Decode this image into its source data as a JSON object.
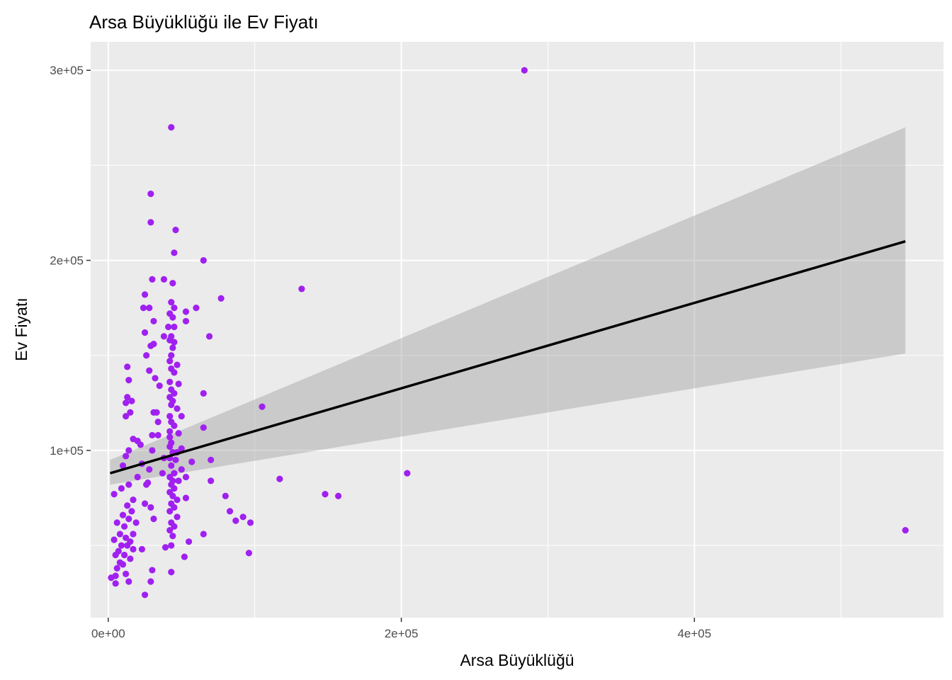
{
  "chart_data": {
    "type": "scatter",
    "title": "Arsa Büyüklüğü ile Ev Fiyatı",
    "xlabel": "Arsa Büyüklüğü",
    "ylabel": "Ev Fiyatı",
    "xlim": [
      -12000,
      570000
    ],
    "ylim": [
      12000,
      315000
    ],
    "x_ticks": [
      0,
      200000,
      400000
    ],
    "x_tick_labels": [
      "0e+00",
      "2e+05",
      "4e+05"
    ],
    "y_ticks": [
      100000,
      200000,
      300000
    ],
    "y_tick_labels": [
      "1e+05",
      "2e+05",
      "3e+05"
    ],
    "point_color": "#A020F0",
    "panel_color": "#EBEBEB",
    "grid_color": "#FFFFFF",
    "line_color": "#000000",
    "band_color": "#999999",
    "trend": {
      "x": [
        1300,
        544000
      ],
      "y": [
        88000,
        210000
      ],
      "band_lower": [
        82000,
        151000
      ],
      "band_upper": [
        95000,
        270000
      ]
    },
    "points": [
      [
        284000,
        300000
      ],
      [
        43000,
        270000
      ],
      [
        29000,
        235000
      ],
      [
        29000,
        220000
      ],
      [
        46000,
        216000
      ],
      [
        45000,
        204000
      ],
      [
        65000,
        200000
      ],
      [
        30000,
        190000
      ],
      [
        38000,
        190000
      ],
      [
        44000,
        188000
      ],
      [
        132000,
        185000
      ],
      [
        25000,
        182000
      ],
      [
        77000,
        180000
      ],
      [
        43000,
        178000
      ],
      [
        45000,
        175000
      ],
      [
        24000,
        175000
      ],
      [
        28000,
        175000
      ],
      [
        60000,
        175000
      ],
      [
        42000,
        172000
      ],
      [
        53000,
        173000
      ],
      [
        44000,
        170000
      ],
      [
        31000,
        168000
      ],
      [
        53000,
        168000
      ],
      [
        41000,
        165000
      ],
      [
        45000,
        165000
      ],
      [
        25000,
        162000
      ],
      [
        38000,
        160000
      ],
      [
        43000,
        160000
      ],
      [
        69000,
        160000
      ],
      [
        42000,
        158000
      ],
      [
        45000,
        157000
      ],
      [
        29000,
        155000
      ],
      [
        44000,
        154000
      ],
      [
        31000,
        156000
      ],
      [
        43000,
        150000
      ],
      [
        26000,
        150000
      ],
      [
        42000,
        147000
      ],
      [
        47000,
        145000
      ],
      [
        13000,
        144000
      ],
      [
        43000,
        143000
      ],
      [
        28000,
        142000
      ],
      [
        45000,
        141000
      ],
      [
        32000,
        138000
      ],
      [
        14000,
        137000
      ],
      [
        42000,
        136000
      ],
      [
        48000,
        135000
      ],
      [
        35000,
        134000
      ],
      [
        43000,
        132000
      ],
      [
        45000,
        130000
      ],
      [
        65000,
        130000
      ],
      [
        13000,
        128000
      ],
      [
        42000,
        128000
      ],
      [
        16000,
        126000
      ],
      [
        44000,
        126000
      ],
      [
        43000,
        124000
      ],
      [
        12000,
        125000
      ],
      [
        105000,
        123000
      ],
      [
        47000,
        122000
      ],
      [
        31000,
        120000
      ],
      [
        33000,
        120000
      ],
      [
        15000,
        120000
      ],
      [
        12000,
        118000
      ],
      [
        42000,
        118000
      ],
      [
        50000,
        118000
      ],
      [
        43000,
        115000
      ],
      [
        34000,
        115000
      ],
      [
        45000,
        113000
      ],
      [
        65000,
        112000
      ],
      [
        42000,
        110000
      ],
      [
        30000,
        108000
      ],
      [
        34000,
        108000
      ],
      [
        48000,
        109000
      ],
      [
        42000,
        107000
      ],
      [
        17000,
        106000
      ],
      [
        20000,
        105000
      ],
      [
        43000,
        104000
      ],
      [
        22000,
        103000
      ],
      [
        42000,
        102000
      ],
      [
        50000,
        101000
      ],
      [
        30000,
        100000
      ],
      [
        14000,
        100000
      ],
      [
        44000,
        99000
      ],
      [
        47000,
        99000
      ],
      [
        12000,
        97000
      ],
      [
        38000,
        96000
      ],
      [
        42000,
        96000
      ],
      [
        46000,
        95000
      ],
      [
        57000,
        94000
      ],
      [
        70000,
        95000
      ],
      [
        23000,
        93000
      ],
      [
        43000,
        92000
      ],
      [
        50000,
        90000
      ],
      [
        10000,
        92000
      ],
      [
        28000,
        90000
      ],
      [
        45000,
        88000
      ],
      [
        37000,
        88000
      ],
      [
        20000,
        86000
      ],
      [
        42000,
        86000
      ],
      [
        53000,
        86000
      ],
      [
        117000,
        85000
      ],
      [
        44000,
        84000
      ],
      [
        27000,
        83000
      ],
      [
        48000,
        84000
      ],
      [
        70000,
        84000
      ],
      [
        43000,
        82000
      ],
      [
        26000,
        82000
      ],
      [
        14000,
        82000
      ],
      [
        45000,
        80000
      ],
      [
        9000,
        80000
      ],
      [
        42000,
        78000
      ],
      [
        148000,
        77000
      ],
      [
        4000,
        77000
      ],
      [
        157000,
        76000
      ],
      [
        44000,
        76000
      ],
      [
        80000,
        76000
      ],
      [
        53000,
        75000
      ],
      [
        47000,
        74000
      ],
      [
        17000,
        74000
      ],
      [
        43000,
        72000
      ],
      [
        25000,
        72000
      ],
      [
        13000,
        71000
      ],
      [
        45000,
        70000
      ],
      [
        29000,
        70000
      ],
      [
        16000,
        68000
      ],
      [
        83000,
        68000
      ],
      [
        42000,
        68000
      ],
      [
        10000,
        66000
      ],
      [
        92000,
        65000
      ],
      [
        47000,
        65000
      ],
      [
        31000,
        64000
      ],
      [
        14000,
        64000
      ],
      [
        87000,
        63000
      ],
      [
        43000,
        62000
      ],
      [
        97000,
        62000
      ],
      [
        19000,
        62000
      ],
      [
        6000,
        62000
      ],
      [
        45000,
        60000
      ],
      [
        11000,
        60000
      ],
      [
        42000,
        58000
      ],
      [
        65000,
        56000
      ],
      [
        17000,
        56000
      ],
      [
        8000,
        56000
      ],
      [
        544000,
        58000
      ],
      [
        12000,
        54000
      ],
      [
        44000,
        55000
      ],
      [
        4000,
        53000
      ],
      [
        55000,
        52000
      ],
      [
        15000,
        52000
      ],
      [
        9000,
        50000
      ],
      [
        39000,
        49000
      ],
      [
        43000,
        50000
      ],
      [
        13000,
        50000
      ],
      [
        17000,
        48000
      ],
      [
        23000,
        48000
      ],
      [
        7000,
        47000
      ],
      [
        96000,
        46000
      ],
      [
        11000,
        45000
      ],
      [
        5000,
        45000
      ],
      [
        52000,
        44000
      ],
      [
        15000,
        43000
      ],
      [
        8000,
        41000
      ],
      [
        10000,
        40000
      ],
      [
        6000,
        38000
      ],
      [
        30000,
        37000
      ],
      [
        43000,
        36000
      ],
      [
        12000,
        35000
      ],
      [
        5000,
        34000
      ],
      [
        2000,
        33000
      ],
      [
        14000,
        31000
      ],
      [
        29000,
        31000
      ],
      [
        5000,
        30000
      ],
      [
        25000,
        24000
      ],
      [
        204000,
        88000
      ]
    ]
  }
}
